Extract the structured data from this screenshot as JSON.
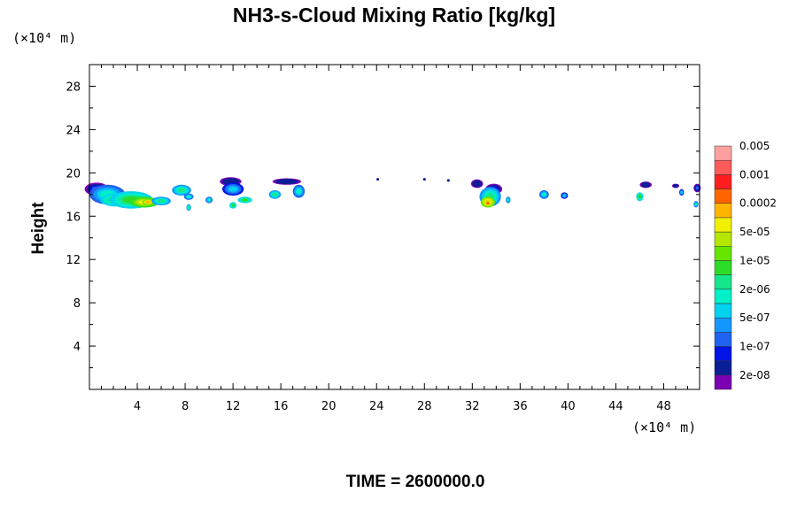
{
  "chart_data": {
    "type": "heatmap",
    "title": "NH3-s-Cloud Mixing Ratio [kg/kg]",
    "ylabel": "Height",
    "x_unit": "(×10⁴ m)",
    "y_unit": "(×10⁴ m)",
    "xlim": [
      0,
      51
    ],
    "ylim": [
      0,
      30
    ],
    "x_ticks": [
      "4",
      "8",
      "12",
      "16",
      "20",
      "24",
      "28",
      "32",
      "36",
      "40",
      "44",
      "48"
    ],
    "y_ticks": [
      "4",
      "8",
      "12",
      "16",
      "20",
      "24",
      "28"
    ],
    "time_label": "TIME = 2600000.0",
    "colorbar": {
      "colors": [
        "#7B00B4",
        "#0A1E96",
        "#0014E6",
        "#1E64F0",
        "#1496FF",
        "#00D2F0",
        "#00F0C8",
        "#14E68C",
        "#2DDC28",
        "#64E600",
        "#B4E600",
        "#F0F000",
        "#FFB400",
        "#FF6400",
        "#FF1E1E",
        "#FF5A5A",
        "#FFA0A0"
      ],
      "labels": [
        "2e-08",
        "1e-07",
        "5e-07",
        "2e-06",
        "1e-05",
        "5e-05",
        "0.0002",
        "0.001",
        "0.005"
      ]
    },
    "clouds": [
      {
        "x": 0.6,
        "y": 18.5,
        "rx": 1.0,
        "ry": 0.6,
        "level": 3
      },
      {
        "x": 1.5,
        "y": 18.0,
        "rx": 1.5,
        "ry": 0.9,
        "level": 6
      },
      {
        "x": 2.2,
        "y": 17.5,
        "rx": 1.3,
        "ry": 0.6,
        "level": 8
      },
      {
        "x": 3.5,
        "y": 17.5,
        "rx": 1.8,
        "ry": 0.8,
        "level": 8
      },
      {
        "x": 4.6,
        "y": 17.3,
        "rx": 1.2,
        "ry": 0.5,
        "level": 11
      },
      {
        "x": 4.9,
        "y": 17.3,
        "rx": 0.5,
        "ry": 0.3,
        "level": 12
      },
      {
        "x": 6.0,
        "y": 17.4,
        "rx": 0.8,
        "ry": 0.4,
        "level": 7
      },
      {
        "x": 7.7,
        "y": 18.4,
        "rx": 0.8,
        "ry": 0.5,
        "level": 7
      },
      {
        "x": 8.3,
        "y": 17.8,
        "rx": 0.4,
        "ry": 0.3,
        "level": 6
      },
      {
        "x": 8.3,
        "y": 16.8,
        "rx": 0.2,
        "ry": 0.3,
        "level": 7
      },
      {
        "x": 10.0,
        "y": 17.5,
        "rx": 0.3,
        "ry": 0.3,
        "level": 6
      },
      {
        "x": 11.8,
        "y": 19.2,
        "rx": 0.9,
        "ry": 0.4,
        "level": 1
      },
      {
        "x": 12.0,
        "y": 18.5,
        "rx": 0.9,
        "ry": 0.6,
        "level": 5
      },
      {
        "x": 13.0,
        "y": 17.5,
        "rx": 0.6,
        "ry": 0.3,
        "level": 8
      },
      {
        "x": 12.0,
        "y": 17.0,
        "rx": 0.3,
        "ry": 0.3,
        "level": 8
      },
      {
        "x": 15.5,
        "y": 18.0,
        "rx": 0.5,
        "ry": 0.4,
        "level": 7
      },
      {
        "x": 16.5,
        "y": 19.2,
        "rx": 1.2,
        "ry": 0.3,
        "level": 1
      },
      {
        "x": 17.5,
        "y": 18.3,
        "rx": 0.5,
        "ry": 0.6,
        "level": 6
      },
      {
        "x": 24.1,
        "y": 19.4,
        "rx": 0.1,
        "ry": 0.1,
        "level": 1
      },
      {
        "x": 28.0,
        "y": 19.4,
        "rx": 0.1,
        "ry": 0.1,
        "level": 1
      },
      {
        "x": 30.0,
        "y": 19.3,
        "rx": 0.1,
        "ry": 0.1,
        "level": 1
      },
      {
        "x": 32.4,
        "y": 19.0,
        "rx": 0.5,
        "ry": 0.4,
        "level": 1
      },
      {
        "x": 33.8,
        "y": 18.5,
        "rx": 0.7,
        "ry": 0.5,
        "level": 2
      },
      {
        "x": 33.5,
        "y": 17.8,
        "rx": 0.9,
        "ry": 0.9,
        "level": 7
      },
      {
        "x": 33.3,
        "y": 17.3,
        "rx": 0.6,
        "ry": 0.5,
        "level": 12
      },
      {
        "x": 33.3,
        "y": 17.2,
        "rx": 0.3,
        "ry": 0.3,
        "level": 13
      },
      {
        "x": 35.0,
        "y": 17.5,
        "rx": 0.2,
        "ry": 0.3,
        "level": 6
      },
      {
        "x": 38.0,
        "y": 18.0,
        "rx": 0.4,
        "ry": 0.4,
        "level": 6
      },
      {
        "x": 39.7,
        "y": 17.9,
        "rx": 0.3,
        "ry": 0.3,
        "level": 5
      },
      {
        "x": 46.0,
        "y": 17.8,
        "rx": 0.3,
        "ry": 0.4,
        "level": 8
      },
      {
        "x": 46.5,
        "y": 18.9,
        "rx": 0.5,
        "ry": 0.3,
        "level": 1
      },
      {
        "x": 49.0,
        "y": 18.8,
        "rx": 0.3,
        "ry": 0.2,
        "level": 1
      },
      {
        "x": 49.5,
        "y": 18.2,
        "rx": 0.2,
        "ry": 0.3,
        "level": 5
      },
      {
        "x": 50.8,
        "y": 18.6,
        "rx": 0.3,
        "ry": 0.4,
        "level": 3
      },
      {
        "x": 50.7,
        "y": 17.1,
        "rx": 0.2,
        "ry": 0.3,
        "level": 6
      }
    ]
  }
}
